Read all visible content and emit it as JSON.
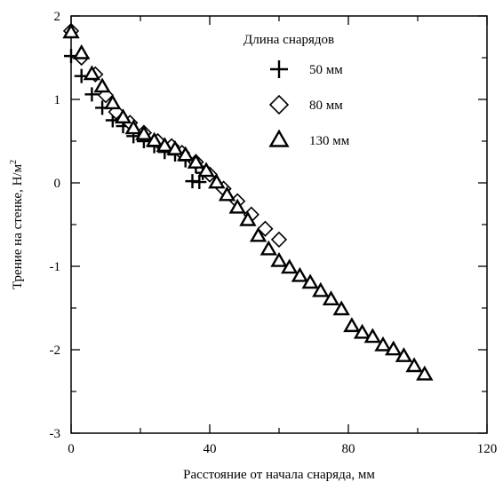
{
  "chart_data": {
    "type": "scatter",
    "xlabel": "Расстояние от начала снаряда, мм",
    "ylabel": "Трение на стенке, Н/м",
    "ylabel_sup": "2",
    "xlim": [
      0,
      120
    ],
    "ylim": [
      -3,
      2
    ],
    "x_ticks": [
      0,
      40,
      80,
      120
    ],
    "x_tick_labels": [
      "0",
      "40",
      "80",
      "120"
    ],
    "y_ticks": [
      -3,
      -2,
      -1,
      0,
      1,
      2
    ],
    "y_tick_labels": [
      "-3",
      "-2",
      "-1",
      "0",
      "1",
      "2"
    ],
    "grid": false,
    "legend": {
      "title": "Длина снарядов",
      "placement": "top-right"
    },
    "series": [
      {
        "name": "50 мм",
        "marker": "plus",
        "points": [
          [
            0,
            1.52
          ],
          [
            3,
            1.28
          ],
          [
            6,
            1.06
          ],
          [
            9,
            0.9
          ],
          [
            12,
            0.75
          ],
          [
            15,
            0.68
          ],
          [
            18,
            0.56
          ],
          [
            21,
            0.5
          ],
          [
            24,
            0.44
          ],
          [
            27,
            0.37
          ],
          [
            30,
            0.34
          ],
          [
            33,
            0.27
          ],
          [
            36,
            0.2
          ],
          [
            38,
            0.12
          ],
          [
            35,
            0.02
          ],
          [
            37,
            0.01
          ]
        ]
      },
      {
        "name": "80 мм",
        "marker": "diamond",
        "points": [
          [
            0,
            1.82
          ],
          [
            3,
            1.5
          ],
          [
            7,
            1.3
          ],
          [
            10,
            1.05
          ],
          [
            13,
            0.85
          ],
          [
            17,
            0.72
          ],
          [
            21,
            0.6
          ],
          [
            25,
            0.5
          ],
          [
            29,
            0.44
          ],
          [
            32,
            0.36
          ],
          [
            36,
            0.25
          ],
          [
            40,
            0.1
          ],
          [
            44,
            -0.07
          ],
          [
            48,
            -0.22
          ],
          [
            52,
            -0.38
          ],
          [
            56,
            -0.55
          ],
          [
            60,
            -0.68
          ]
        ]
      },
      {
        "name": "130 мм",
        "marker": "triangle",
        "points": [
          [
            0,
            1.8
          ],
          [
            3,
            1.55
          ],
          [
            6,
            1.3
          ],
          [
            9,
            1.15
          ],
          [
            12,
            0.95
          ],
          [
            15,
            0.78
          ],
          [
            18,
            0.65
          ],
          [
            21,
            0.58
          ],
          [
            24,
            0.5
          ],
          [
            27,
            0.44
          ],
          [
            30,
            0.4
          ],
          [
            33,
            0.33
          ],
          [
            36,
            0.24
          ],
          [
            39,
            0.14
          ],
          [
            42,
            0.0
          ],
          [
            45,
            -0.15
          ],
          [
            48,
            -0.3
          ],
          [
            51,
            -0.45
          ],
          [
            54,
            -0.64
          ],
          [
            57,
            -0.8
          ],
          [
            60,
            -0.94
          ],
          [
            63,
            -1.02
          ],
          [
            66,
            -1.12
          ],
          [
            69,
            -1.2
          ],
          [
            72,
            -1.3
          ],
          [
            75,
            -1.4
          ],
          [
            78,
            -1.52
          ],
          [
            81,
            -1.72
          ],
          [
            84,
            -1.8
          ],
          [
            87,
            -1.85
          ],
          [
            90,
            -1.95
          ],
          [
            93,
            -2.0
          ],
          [
            96,
            -2.08
          ],
          [
            99,
            -2.2
          ],
          [
            102,
            -2.3
          ]
        ]
      }
    ]
  }
}
